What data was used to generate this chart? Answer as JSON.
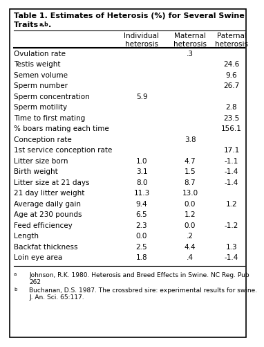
{
  "title_line1": "Table 1. Estimates of Heterosis (%) for Several Swine",
  "title_line2": "Traits ",
  "title_superscript": "a,b",
  "title_dot": ".",
  "col_headers": [
    "Individual\nheterosis",
    "Maternal\nheterosis",
    "Paternal\nheterosis"
  ],
  "rows": [
    [
      "Ovulation rate",
      "",
      ".3",
      ""
    ],
    [
      "Testis weight",
      "",
      "",
      "24.6"
    ],
    [
      "Semen volume",
      "",
      "",
      "9.6"
    ],
    [
      "Sperm number",
      "",
      "",
      "26.7"
    ],
    [
      "Sperm concentration",
      "5.9",
      "",
      ""
    ],
    [
      "Sperm motility",
      "",
      "",
      "2.8"
    ],
    [
      "Time to first mating",
      "",
      "",
      "23.5"
    ],
    [
      "% boars mating each time",
      "",
      "",
      "156.1"
    ],
    [
      "Conception rate",
      "",
      "3.8",
      ""
    ],
    [
      "1st service conception rate",
      "",
      "",
      "17.1"
    ],
    [
      "Litter size born",
      "1.0",
      "4.7",
      "-1.1"
    ],
    [
      "Birth weight",
      "3.1",
      "1.5",
      "-1.4"
    ],
    [
      "Litter size at 21 days",
      "8.0",
      "8.7",
      "-1.4"
    ],
    [
      "21 day litter weight",
      "11.3",
      "13.0",
      ""
    ],
    [
      "Average daily gain",
      "9.4",
      "0.0",
      "1.2"
    ],
    [
      "Age at 230 pounds",
      "6.5",
      "1.2",
      ""
    ],
    [
      "Feed efficiencey",
      "2.3",
      "0.0",
      "-1.2"
    ],
    [
      "Length",
      "0.0",
      ".2",
      ""
    ],
    [
      "Backfat thickness",
      "2.5",
      "4.4",
      "1.3"
    ],
    [
      "Loin eye area",
      "1.8",
      ".4",
      "-1.4"
    ]
  ],
  "footnote_a_marker": "a",
  "footnote_a_text": "Johnson, R.K. 1980. Heterosis and Breed Effects in Swine. NC Reg. Pub\n262",
  "footnote_b_marker": "b",
  "footnote_b_text": "Buchanan, D.S. 1987. The crossbred sire: experimental results for swine.\nJ. An. Sci. 65:117.",
  "bg_color": "#ffffff",
  "text_color": "#000000",
  "border_color": "#000000",
  "title_fontsize": 8.0,
  "header_fontsize": 7.5,
  "data_fontsize": 7.5,
  "footnote_fontsize": 6.5
}
